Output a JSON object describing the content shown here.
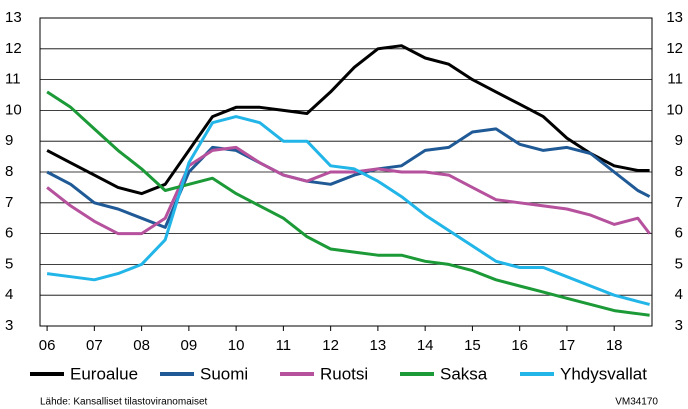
{
  "chart_data": {
    "type": "line",
    "x": [
      6,
      6.5,
      7,
      7.5,
      8,
      8.5,
      9,
      9.5,
      10,
      10.5,
      11,
      11.5,
      12,
      12.5,
      13,
      13.5,
      14,
      14.5,
      15,
      15.5,
      16,
      16.5,
      17,
      17.5,
      18,
      18.5,
      18.75
    ],
    "series": [
      {
        "name": "Euroalue",
        "color": "#000000",
        "values": [
          8.7,
          8.3,
          7.9,
          7.5,
          7.3,
          7.6,
          8.7,
          9.8,
          10.1,
          10.1,
          10.0,
          9.9,
          10.6,
          11.4,
          12.0,
          12.1,
          11.7,
          11.5,
          11.0,
          10.6,
          10.2,
          9.8,
          9.1,
          8.6,
          8.2,
          8.05,
          8.05
        ]
      },
      {
        "name": "Suomi",
        "color": "#1f5a96",
        "values": [
          8.0,
          7.6,
          7.0,
          6.8,
          6.5,
          6.2,
          8.0,
          8.8,
          8.7,
          8.3,
          7.9,
          7.7,
          7.6,
          7.9,
          8.1,
          8.2,
          8.7,
          8.8,
          9.3,
          9.4,
          8.9,
          8.7,
          8.8,
          8.6,
          8.0,
          7.4,
          7.2
        ]
      },
      {
        "name": "Ruotsi",
        "color": "#b5519d",
        "values": [
          7.5,
          6.9,
          6.4,
          6.0,
          6.0,
          6.5,
          8.2,
          8.7,
          8.8,
          8.3,
          7.9,
          7.7,
          8.0,
          8.0,
          8.1,
          8.0,
          8.0,
          7.9,
          7.5,
          7.1,
          7.0,
          6.9,
          6.8,
          6.6,
          6.3,
          6.5,
          6.0
        ]
      },
      {
        "name": "Saksa",
        "color": "#1c9a37",
        "values": [
          10.6,
          10.1,
          9.4,
          8.7,
          8.1,
          7.4,
          7.6,
          7.8,
          7.3,
          6.9,
          6.5,
          5.9,
          5.5,
          5.4,
          5.3,
          5.3,
          5.1,
          5.0,
          4.8,
          4.5,
          4.3,
          4.1,
          3.9,
          3.7,
          3.5,
          3.4,
          3.35
        ]
      },
      {
        "name": "Yhdysvallat",
        "color": "#22b5e8",
        "values": [
          4.7,
          4.6,
          4.5,
          4.7,
          5.0,
          5.8,
          8.3,
          9.6,
          9.8,
          9.6,
          9.0,
          9.0,
          8.2,
          8.1,
          7.7,
          7.2,
          6.6,
          6.1,
          5.6,
          5.1,
          4.9,
          4.9,
          4.6,
          4.3,
          4.0,
          3.8,
          3.7
        ]
      }
    ],
    "xlim": [
      5.85,
      18.8
    ],
    "xticks": [
      {
        "value": 6,
        "label": "06"
      },
      {
        "value": 7,
        "label": "07"
      },
      {
        "value": 8,
        "label": "08"
      },
      {
        "value": 9,
        "label": "09"
      },
      10,
      11,
      12,
      13,
      14,
      15,
      16,
      17,
      18
    ],
    "ylim": [
      3,
      13
    ],
    "yticks": [
      3,
      4,
      5,
      6,
      7,
      8,
      9,
      10,
      11,
      12,
      13
    ],
    "y2lim": [
      3,
      13
    ],
    "y2ticks": [
      3,
      4,
      5,
      6,
      7,
      8,
      9,
      10,
      11,
      12,
      13
    ],
    "grid": true,
    "legend": "bottom",
    "source": "Lähde: Kansalliset tilastoviranomaiset",
    "code": "VM34170"
  }
}
